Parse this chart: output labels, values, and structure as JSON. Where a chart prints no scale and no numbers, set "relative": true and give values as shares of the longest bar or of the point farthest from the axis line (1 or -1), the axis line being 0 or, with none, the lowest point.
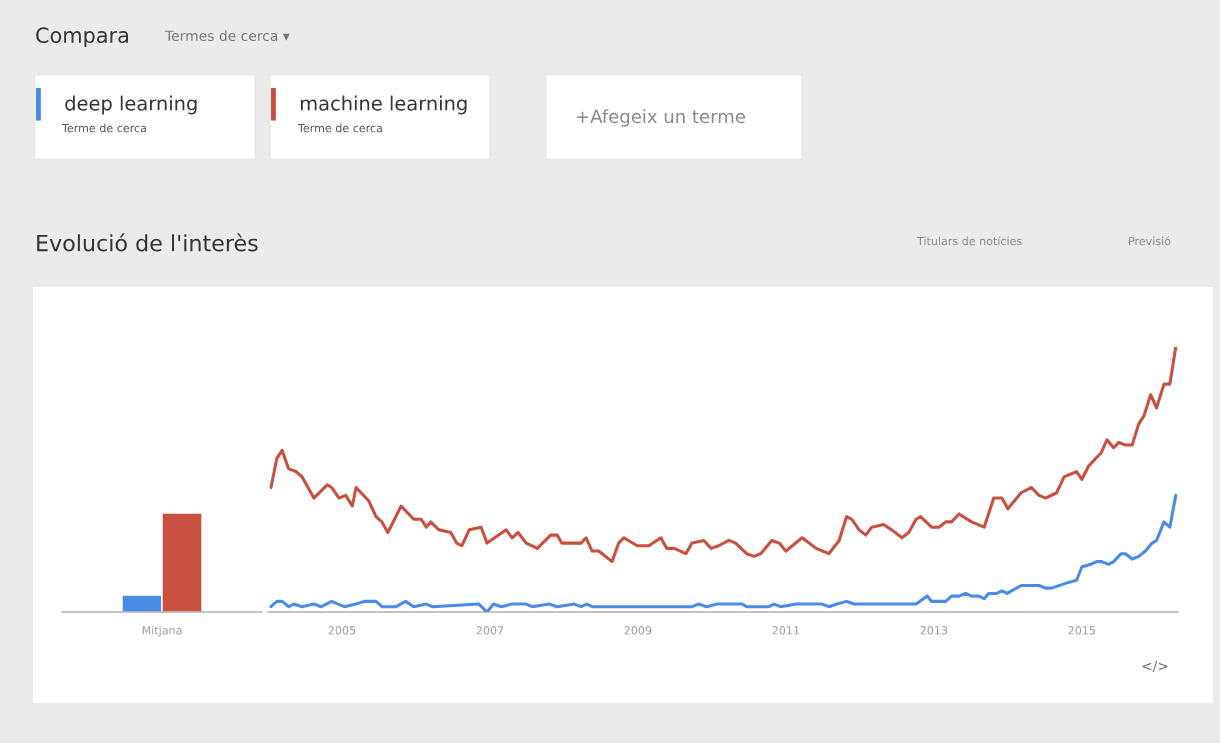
{
  "chart_data": [
    {
      "type": "bar",
      "categories": [
        "Mitjana"
      ],
      "relative": true,
      "series": [
        {
          "color": "#4a8be8",
          "values": [
            0.17
          ]
        },
        {
          "color": "#c8503f",
          "values": [
            1
          ]
        }
      ]
    },
    {
      "type": "line",
      "title": "Evolució de l'interès",
      "relative": true,
      "legend": "top left",
      "annotations": [
        "Compara",
        "Termes de cerca ▾",
        "+Afegeix un terme",
        "Titulars de notícies",
        "Previsió",
        "</>",
        "Terme de cerca",
        "Terme de cerca"
      ],
      "xlim": [
        2004.0,
        2016.3
      ],
      "xticks": [
        2005,
        2007,
        2009,
        2011,
        2013,
        2015
      ],
      "series": [
        {
          "name": "deep learning",
          "color": "#4a8be8",
          "x": [
            2004.04,
            2004.12,
            2004.19,
            2004.28,
            2004.35,
            2004.46,
            2004.62,
            2004.72,
            2004.86,
            2005.03,
            2005.19,
            2005.3,
            2005.46,
            2005.54,
            2005.73,
            2005.86,
            2005.97,
            2006.14,
            2006.22,
            2006.85,
            2006.96,
            2007.05,
            2007.15,
            2007.3,
            2007.49,
            2007.57,
            2007.8,
            2007.91,
            2008.14,
            2008.23,
            2008.31,
            2008.38,
            2009.73,
            2009.82,
            2009.93,
            2010.07,
            2010.41,
            2010.47,
            2010.77,
            2010.84,
            2010.93,
            2011.14,
            2011.49,
            2011.58,
            2011.69,
            2011.82,
            2011.92,
            2012.76,
            2012.91,
            2012.97,
            2013.16,
            2013.24,
            2013.34,
            2013.43,
            2013.51,
            2013.61,
            2013.68,
            2013.74,
            2013.85,
            2013.92,
            2013.99,
            2014.18,
            2014.42,
            2014.51,
            2014.59,
            2014.8,
            2014.93,
            2015.0,
            2015.12,
            2015.2,
            2015.27,
            2015.36,
            2015.43,
            2015.53,
            2015.59,
            2015.68,
            2015.77,
            2015.86,
            2015.95,
            2016.01,
            2016.11,
            2016.19,
            2016.27
          ],
          "values": [
            0.02,
            0.04,
            0.04,
            0.02,
            0.03,
            0.02,
            0.03,
            0.02,
            0.04,
            0.02,
            0.03,
            0.04,
            0.04,
            0.02,
            0.02,
            0.04,
            0.02,
            0.03,
            0.02,
            0.03,
            0.0,
            0.03,
            0.02,
            0.03,
            0.03,
            0.02,
            0.03,
            0.02,
            0.03,
            0.02,
            0.03,
            0.02,
            0.02,
            0.03,
            0.02,
            0.03,
            0.03,
            0.02,
            0.02,
            0.03,
            0.02,
            0.03,
            0.03,
            0.02,
            0.03,
            0.04,
            0.03,
            0.03,
            0.06,
            0.04,
            0.04,
            0.06,
            0.06,
            0.07,
            0.06,
            0.06,
            0.05,
            0.07,
            0.07,
            0.08,
            0.07,
            0.1,
            0.1,
            0.09,
            0.09,
            0.11,
            0.12,
            0.17,
            0.18,
            0.19,
            0.19,
            0.18,
            0.19,
            0.22,
            0.22,
            0.2,
            0.21,
            0.23,
            0.26,
            0.27,
            0.34,
            0.32,
            0.44
          ]
        },
        {
          "name": "machine learning",
          "color": "#c8503f",
          "x": [
            2004.04,
            2004.12,
            2004.19,
            2004.28,
            2004.38,
            2004.46,
            2004.62,
            2004.8,
            2004.86,
            2004.96,
            2005.05,
            2005.14,
            2005.19,
            2005.36,
            2005.46,
            2005.54,
            2005.62,
            2005.8,
            2005.97,
            2006.07,
            2006.14,
            2006.2,
            2006.31,
            2006.47,
            2006.55,
            2006.62,
            2006.72,
            2006.88,
            2006.96,
            2007.22,
            2007.3,
            2007.38,
            2007.49,
            2007.64,
            2007.82,
            2007.91,
            2007.97,
            2008.23,
            2008.3,
            2008.38,
            2008.47,
            2008.65,
            2008.74,
            2008.81,
            2008.99,
            2009.15,
            2009.31,
            2009.39,
            2009.49,
            2009.65,
            2009.73,
            2009.89,
            2009.99,
            2010.09,
            2010.23,
            2010.32,
            2010.47,
            2010.57,
            2010.66,
            2010.81,
            2010.91,
            2011.0,
            2011.22,
            2011.41,
            2011.58,
            2011.72,
            2011.82,
            2011.89,
            2011.99,
            2012.08,
            2012.16,
            2012.32,
            2012.43,
            2012.57,
            2012.66,
            2012.76,
            2012.82,
            2012.97,
            2013.07,
            2013.16,
            2013.24,
            2013.34,
            2013.51,
            2013.68,
            2013.81,
            2013.92,
            2014.0,
            2014.18,
            2014.32,
            2014.42,
            2014.51,
            2014.66,
            2014.76,
            2014.93,
            2015.0,
            2015.09,
            2015.19,
            2015.26,
            2015.34,
            2015.43,
            2015.5,
            2015.59,
            2015.68,
            2015.77,
            2015.84,
            2015.93,
            2016.01,
            2016.11,
            2016.19,
            2016.27
          ],
          "values": [
            0.47,
            0.58,
            0.61,
            0.54,
            0.53,
            0.51,
            0.43,
            0.48,
            0.47,
            0.43,
            0.44,
            0.4,
            0.47,
            0.42,
            0.36,
            0.34,
            0.3,
            0.4,
            0.35,
            0.35,
            0.32,
            0.34,
            0.31,
            0.3,
            0.26,
            0.25,
            0.31,
            0.32,
            0.26,
            0.31,
            0.28,
            0.3,
            0.26,
            0.24,
            0.29,
            0.29,
            0.26,
            0.26,
            0.28,
            0.23,
            0.23,
            0.19,
            0.26,
            0.28,
            0.25,
            0.25,
            0.28,
            0.24,
            0.24,
            0.22,
            0.26,
            0.27,
            0.24,
            0.25,
            0.27,
            0.26,
            0.22,
            0.21,
            0.22,
            0.27,
            0.26,
            0.23,
            0.28,
            0.24,
            0.22,
            0.27,
            0.36,
            0.35,
            0.31,
            0.29,
            0.32,
            0.33,
            0.31,
            0.28,
            0.3,
            0.35,
            0.36,
            0.32,
            0.32,
            0.34,
            0.34,
            0.37,
            0.34,
            0.32,
            0.43,
            0.43,
            0.39,
            0.45,
            0.47,
            0.44,
            0.43,
            0.45,
            0.51,
            0.53,
            0.5,
            0.55,
            0.58,
            0.6,
            0.65,
            0.62,
            0.64,
            0.63,
            0.63,
            0.71,
            0.74,
            0.82,
            0.77,
            0.86,
            0.86,
            1.0
          ]
        }
      ]
    }
  ]
}
